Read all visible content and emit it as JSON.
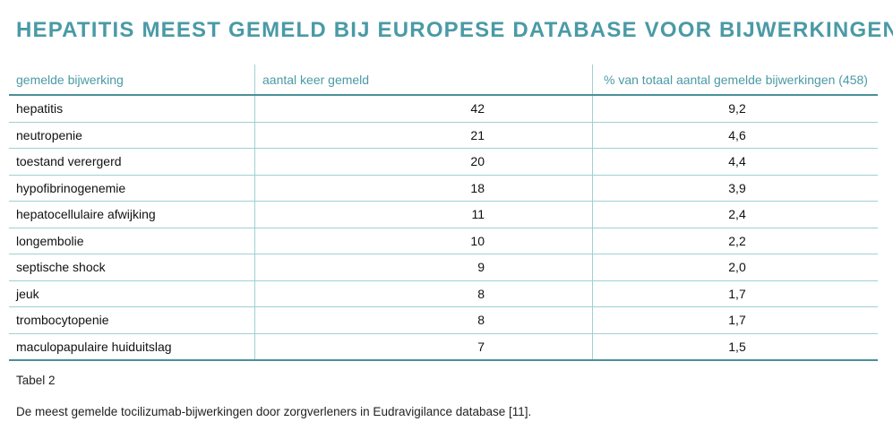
{
  "title": "HEPATITIS MEEST GEMELD BIJ EUROPESE DATABASE VOOR BIJWERKINGEN",
  "table": {
    "headers": [
      "gemelde bijwerking",
      "aantal keer gemeld",
      "% van totaal aantal gemelde bijwerkingen (458)"
    ],
    "rows": [
      [
        "hepatitis",
        "42",
        "9,2"
      ],
      [
        "neutropenie",
        "21",
        "4,6"
      ],
      [
        "toestand verergerd",
        "20",
        "4,4"
      ],
      [
        "hypofibrinogenemie",
        "18",
        "3,9"
      ],
      [
        "hepatocellulaire afwijking",
        "11",
        "2,4"
      ],
      [
        "longembolie",
        "10",
        "2,2"
      ],
      [
        "septische shock",
        "9",
        "2,0"
      ],
      [
        "jeuk",
        "8",
        "1,7"
      ],
      [
        "trombocytopenie",
        "8",
        "1,7"
      ],
      [
        "maculopapulaire huiduitslag",
        "7",
        "1,5"
      ]
    ]
  },
  "caption": {
    "label": "Tabel 2",
    "text": "De meest gemelde tocilizumab-bijwerkingen door zorgverleners in Eudravigilance database [11]."
  }
}
